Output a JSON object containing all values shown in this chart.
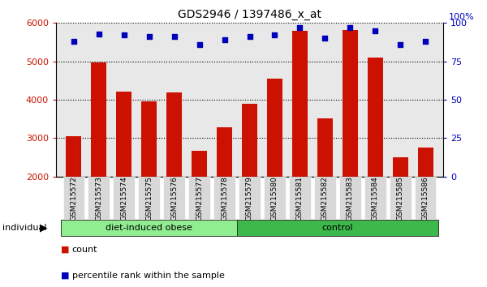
{
  "title": "GDS2946 / 1397486_x_at",
  "categories": [
    "GSM215572",
    "GSM215573",
    "GSM215574",
    "GSM215575",
    "GSM215576",
    "GSM215577",
    "GSM215578",
    "GSM215579",
    "GSM215580",
    "GSM215581",
    "GSM215582",
    "GSM215583",
    "GSM215584",
    "GSM215585",
    "GSM215586"
  ],
  "bar_values": [
    3060,
    4980,
    4220,
    3950,
    4200,
    2680,
    3280,
    3900,
    4560,
    5800,
    3520,
    5820,
    5100,
    2500,
    2760
  ],
  "dot_values": [
    88,
    93,
    92,
    91,
    91,
    86,
    89,
    91,
    92,
    97,
    90,
    97,
    95,
    86,
    88
  ],
  "groups": [
    {
      "label": "diet-induced obese",
      "start": 0,
      "end": 7,
      "color": "#90EE90"
    },
    {
      "label": "control",
      "start": 7,
      "end": 15,
      "color": "#3CB94A"
    }
  ],
  "ylim_left": [
    2000,
    6000
  ],
  "ylim_right": [
    0,
    100
  ],
  "yticks_left": [
    2000,
    3000,
    4000,
    5000,
    6000
  ],
  "yticks_right": [
    0,
    25,
    50,
    75,
    100
  ],
  "bar_color": "#CC1100",
  "dot_color": "#0000BB",
  "bg_color": "#E8E8E8",
  "legend_count_label": "count",
  "legend_pct_label": "percentile rank within the sample",
  "individual_label": "individual",
  "right_axis_pct": "100%"
}
